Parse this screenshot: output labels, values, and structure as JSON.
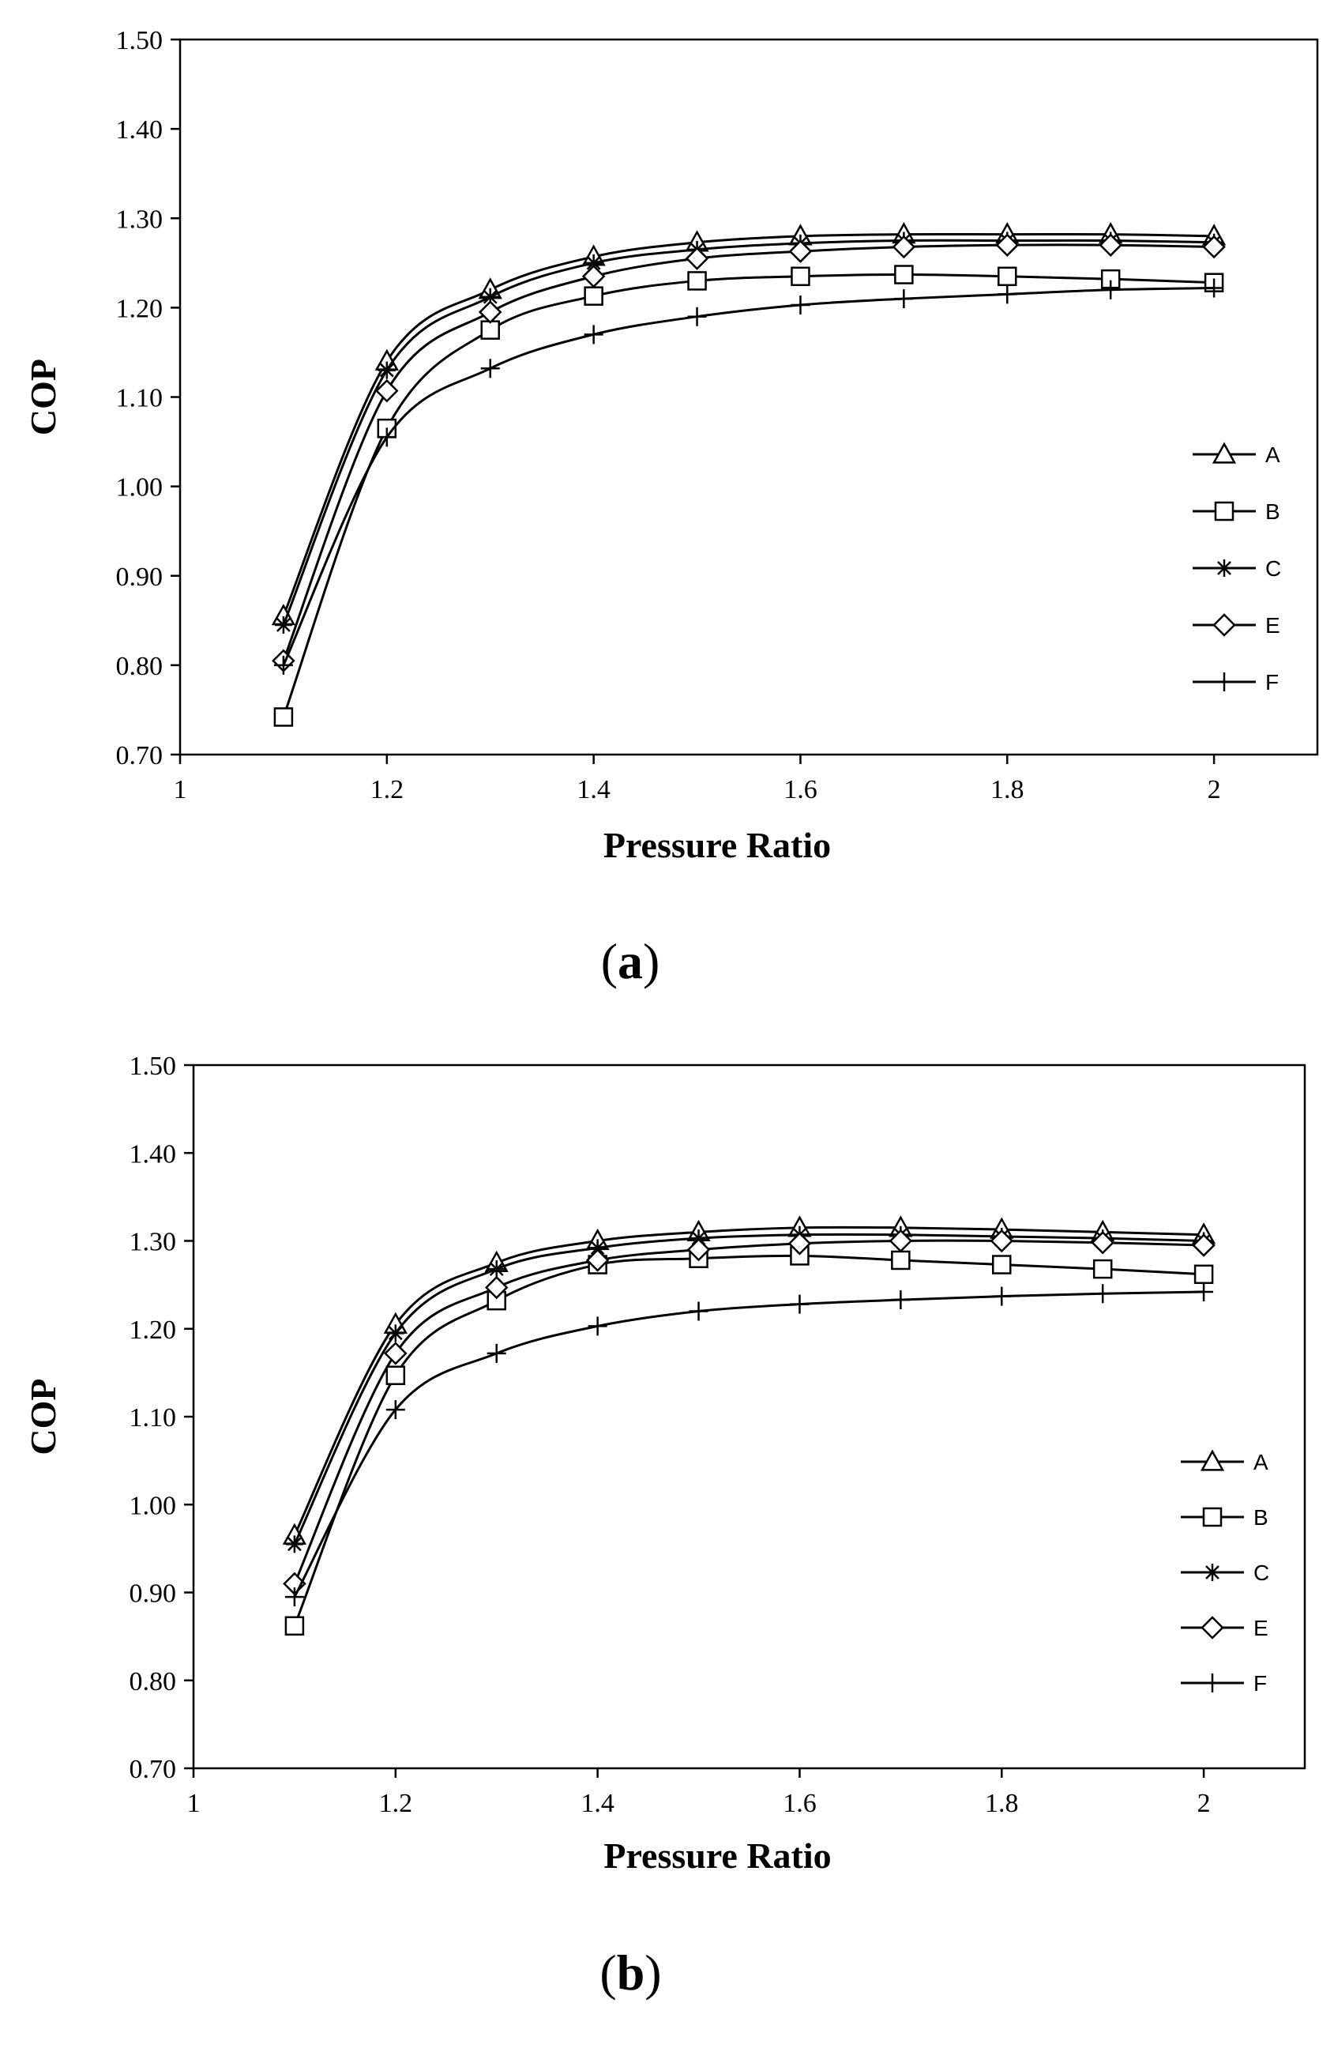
{
  "chart_data": [
    {
      "type": "line",
      "panel_label": "a",
      "xlabel": "Pressure Ratio",
      "ylabel": "COP",
      "xlim": [
        1,
        2.1
      ],
      "ylim": [
        0.7,
        1.5
      ],
      "x_ticks": [
        1,
        1.2,
        1.4,
        1.6,
        1.8,
        2
      ],
      "x_tick_labels": [
        "1",
        "1.2",
        "1.4",
        "1.6",
        "1.8",
        "2"
      ],
      "y_ticks": [
        0.7,
        0.8,
        0.9,
        1.0,
        1.1,
        1.2,
        1.3,
        1.4,
        1.5
      ],
      "y_tick_labels": [
        "0.70",
        "0.80",
        "0.90",
        "1.00",
        "1.10",
        "1.20",
        "1.30",
        "1.40",
        "1.50"
      ],
      "legend_position": "right",
      "x": [
        1.1,
        1.2,
        1.3,
        1.4,
        1.5,
        1.6,
        1.7,
        1.8,
        1.9,
        2.0
      ],
      "series": [
        {
          "name": "A",
          "marker": "triangle",
          "values": [
            0.855,
            1.14,
            1.22,
            1.257,
            1.273,
            1.28,
            1.282,
            1.282,
            1.282,
            1.28
          ]
        },
        {
          "name": "B",
          "marker": "square",
          "values": [
            0.742,
            1.065,
            1.175,
            1.213,
            1.23,
            1.235,
            1.237,
            1.235,
            1.232,
            1.228
          ]
        },
        {
          "name": "C",
          "marker": "asterisk",
          "values": [
            0.845,
            1.13,
            1.212,
            1.25,
            1.265,
            1.272,
            1.275,
            1.275,
            1.275,
            1.273
          ]
        },
        {
          "name": "E",
          "marker": "diamond",
          "values": [
            0.805,
            1.107,
            1.195,
            1.235,
            1.255,
            1.263,
            1.268,
            1.27,
            1.27,
            1.268
          ]
        },
        {
          "name": "F",
          "marker": "plus",
          "values": [
            0.8,
            1.055,
            1.132,
            1.17,
            1.19,
            1.203,
            1.21,
            1.215,
            1.22,
            1.222
          ]
        }
      ]
    },
    {
      "type": "line",
      "panel_label": "b",
      "xlabel": "Pressure Ratio",
      "ylabel": "COP",
      "xlim": [
        1,
        2.1
      ],
      "ylim": [
        0.7,
        1.5
      ],
      "x_ticks": [
        1,
        1.2,
        1.4,
        1.6,
        1.8,
        2
      ],
      "x_tick_labels": [
        "1",
        "1.2",
        "1.4",
        "1.6",
        "1.8",
        "2"
      ],
      "y_ticks": [
        0.7,
        0.8,
        0.9,
        1.0,
        1.1,
        1.2,
        1.3,
        1.4,
        1.5
      ],
      "y_tick_labels": [
        "0.70",
        "0.80",
        "0.90",
        "1.00",
        "1.10",
        "1.20",
        "1.30",
        "1.40",
        "1.50"
      ],
      "legend_position": "right",
      "x": [
        1.1,
        1.2,
        1.3,
        1.4,
        1.5,
        1.6,
        1.7,
        1.8,
        1.9,
        2.0
      ],
      "series": [
        {
          "name": "A",
          "marker": "triangle",
          "values": [
            0.965,
            1.205,
            1.275,
            1.3,
            1.31,
            1.315,
            1.315,
            1.313,
            1.31,
            1.307
          ]
        },
        {
          "name": "B",
          "marker": "square",
          "values": [
            0.862,
            1.147,
            1.232,
            1.273,
            1.28,
            1.283,
            1.278,
            1.273,
            1.268,
            1.262
          ]
        },
        {
          "name": "C",
          "marker": "asterisk",
          "values": [
            0.955,
            1.195,
            1.268,
            1.292,
            1.303,
            1.307,
            1.307,
            1.305,
            1.303,
            1.3
          ]
        },
        {
          "name": "E",
          "marker": "diamond",
          "values": [
            0.91,
            1.172,
            1.247,
            1.278,
            1.29,
            1.297,
            1.3,
            1.3,
            1.298,
            1.295
          ]
        },
        {
          "name": "F",
          "marker": "plus",
          "values": [
            0.895,
            1.108,
            1.172,
            1.203,
            1.22,
            1.228,
            1.233,
            1.237,
            1.24,
            1.242
          ]
        }
      ]
    }
  ]
}
